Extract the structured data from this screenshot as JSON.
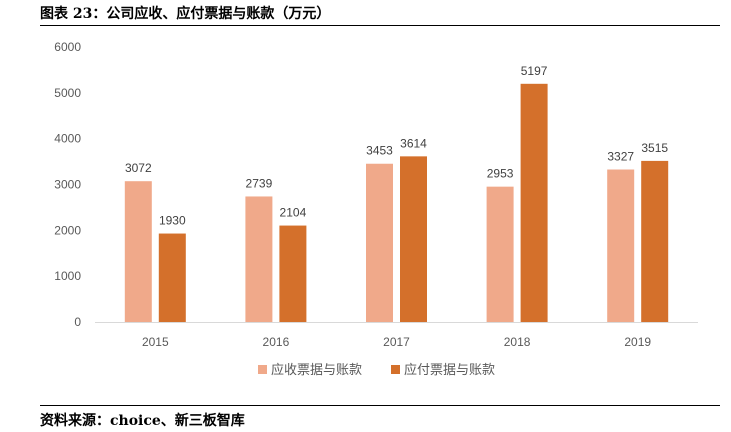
{
  "title": "图表 23：公司应收、应付票据与账款（万元）",
  "source": "资料来源：choice、新三板智库",
  "chart_data": {
    "type": "bar",
    "categories": [
      "2015",
      "2016",
      "2017",
      "2018",
      "2019"
    ],
    "series": [
      {
        "name": "应收票据与账款",
        "values": [
          3072,
          2739,
          3453,
          2953,
          3327
        ],
        "color": "#F0A98A"
      },
      {
        "name": "应付票据与账款",
        "values": [
          1930,
          2104,
          3614,
          5197,
          3515
        ],
        "color": "#D4702B"
      }
    ],
    "yticks": [
      "0",
      "1000",
      "2000",
      "3000",
      "4000",
      "5000",
      "6000"
    ],
    "ylim": [
      0,
      6000
    ],
    "legend": "bottom",
    "grid": false,
    "title": "",
    "xlabel": "",
    "ylabel": ""
  }
}
